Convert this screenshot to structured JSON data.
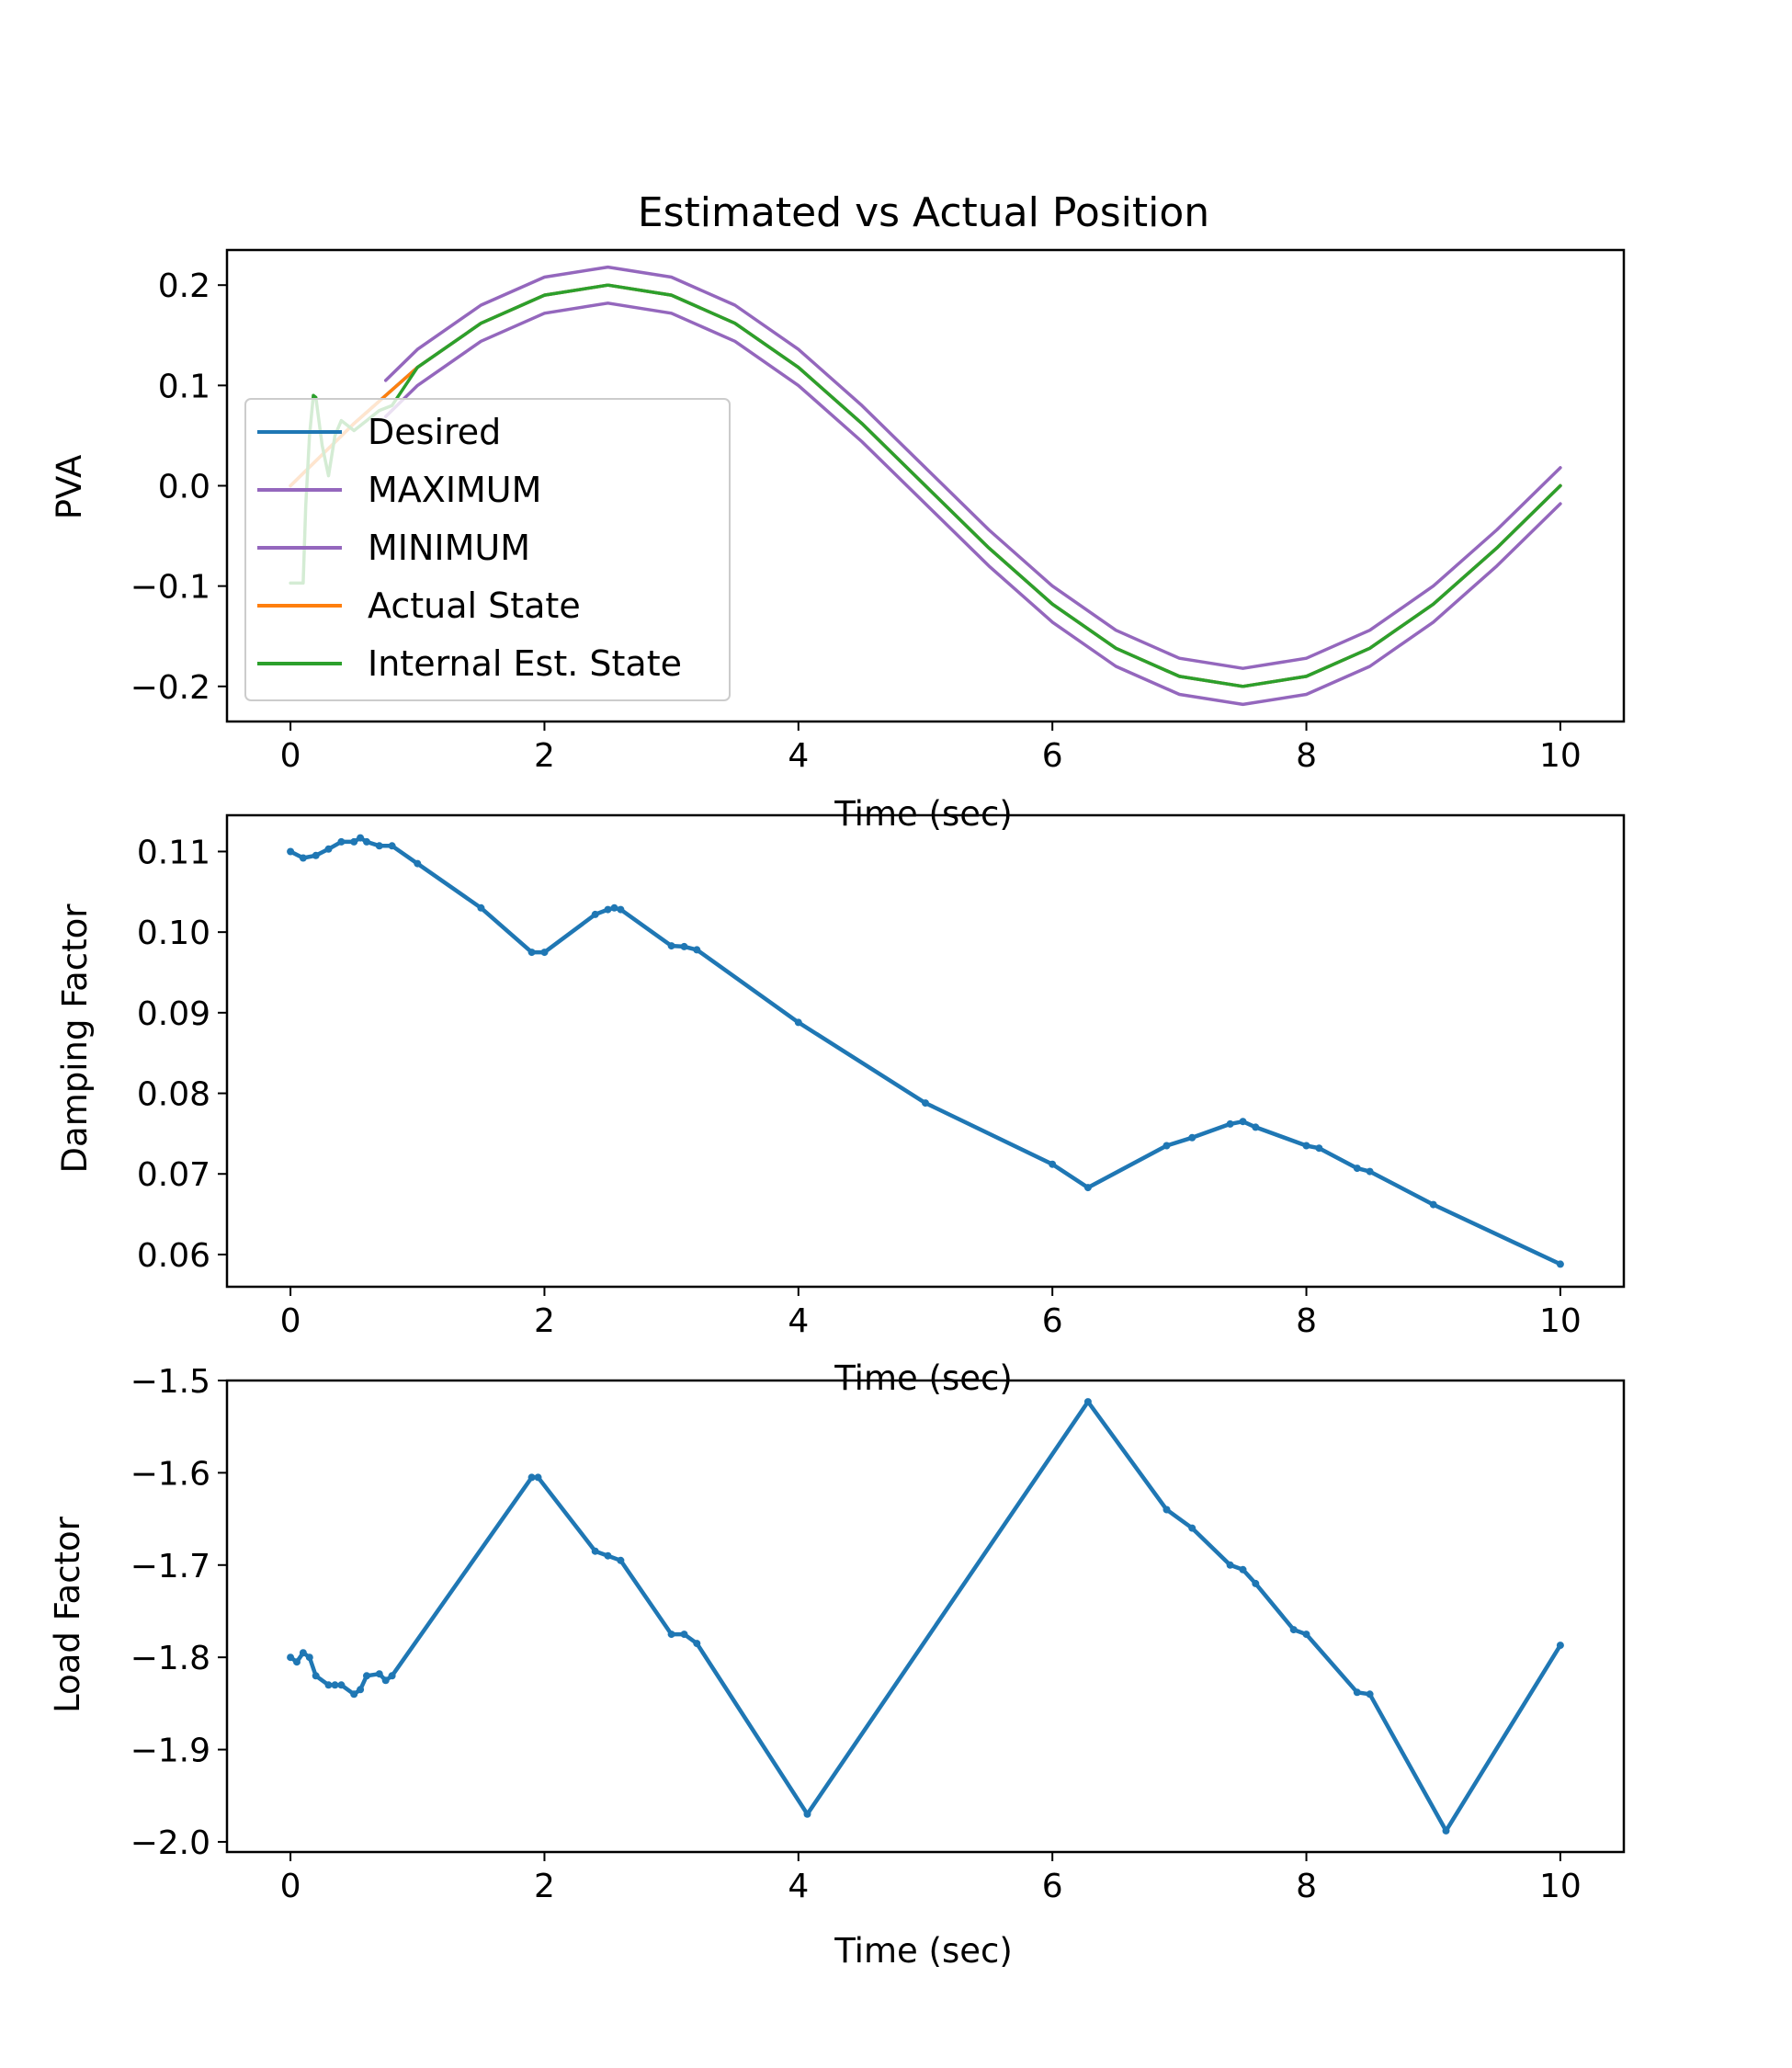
{
  "chart_data": [
    {
      "type": "line",
      "title": "Estimated vs Actual Position",
      "xlabel": "Time (sec)",
      "ylabel": "PVA",
      "xlim": [
        -0.5,
        10.5
      ],
      "ylim": [
        -0.235,
        0.235
      ],
      "xticks": [
        0,
        2,
        4,
        6,
        8,
        10
      ],
      "xtick_labels": [
        "0",
        "2",
        "4",
        "6",
        "8",
        "10"
      ],
      "yticks": [
        0.2,
        0.1,
        0.0,
        -0.1,
        -0.2
      ],
      "ytick_labels": [
        "0.2",
        "0.1",
        "0.0",
        "−0.1",
        "−0.2"
      ],
      "grid": false,
      "legend_position": "upper-left",
      "series": [
        {
          "name": "Desired",
          "color": "#1f77b4",
          "x": [
            0,
            0.5,
            1,
            1.5,
            2,
            2.5,
            3,
            3.5,
            4,
            4.5,
            5,
            5.5,
            6,
            6.5,
            7,
            7.5,
            8,
            8.5,
            9,
            9.5,
            10
          ],
          "y": [
            0.0,
            0.062,
            0.118,
            0.162,
            0.19,
            0.2,
            0.19,
            0.162,
            0.118,
            0.062,
            0.0,
            -0.062,
            -0.118,
            -0.162,
            -0.19,
            -0.2,
            -0.19,
            -0.162,
            -0.118,
            -0.062,
            0.0
          ]
        },
        {
          "name": "MAXIMUM",
          "color": "#9467bd",
          "x": [
            0.75,
            1,
            1.5,
            2,
            2.5,
            3,
            3.5,
            4,
            4.5,
            5,
            5.5,
            6,
            6.5,
            7,
            7.5,
            8,
            8.5,
            9,
            9.5,
            10
          ],
          "y": [
            0.105,
            0.136,
            0.18,
            0.208,
            0.218,
            0.208,
            0.18,
            0.136,
            0.08,
            0.018,
            -0.044,
            -0.1,
            -0.144,
            -0.172,
            -0.182,
            -0.172,
            -0.144,
            -0.1,
            -0.044,
            0.018
          ]
        },
        {
          "name": "MINIMUM",
          "color": "#9467bd",
          "x": [
            0.75,
            1,
            1.5,
            2,
            2.5,
            3,
            3.5,
            4,
            4.5,
            5,
            5.5,
            6,
            6.5,
            7,
            7.5,
            8,
            8.5,
            9,
            9.5,
            10
          ],
          "y": [
            0.069,
            0.1,
            0.144,
            0.172,
            0.182,
            0.172,
            0.144,
            0.1,
            0.044,
            -0.018,
            -0.08,
            -0.136,
            -0.18,
            -0.208,
            -0.218,
            -0.208,
            -0.18,
            -0.136,
            -0.08,
            -0.018
          ]
        },
        {
          "name": "Actual State",
          "color": "#ff7f0e",
          "x": [
            0,
            0.5,
            1,
            1.5,
            2,
            2.5,
            3,
            3.5,
            4,
            4.5,
            5,
            5.5,
            6,
            6.5,
            7,
            7.5,
            8,
            8.5,
            9,
            9.5,
            10
          ],
          "y": [
            0.0,
            0.062,
            0.118,
            0.162,
            0.19,
            0.2,
            0.19,
            0.162,
            0.118,
            0.062,
            0.0,
            -0.062,
            -0.118,
            -0.162,
            -0.19,
            -0.2,
            -0.19,
            -0.162,
            -0.118,
            -0.062,
            0.0
          ]
        },
        {
          "name": "Internal Est. State",
          "color": "#2ca02c",
          "x": [
            0,
            0.1,
            0.12,
            0.15,
            0.18,
            0.2,
            0.25,
            0.3,
            0.35,
            0.4,
            0.45,
            0.5,
            0.6,
            0.7,
            0.8,
            1,
            1.5,
            2,
            2.5,
            3,
            3.5,
            4,
            4.5,
            5,
            5.5,
            6,
            6.5,
            7,
            7.5,
            8,
            8.5,
            9,
            9.5,
            10
          ],
          "y": [
            -0.097,
            -0.097,
            -0.02,
            0.05,
            0.09,
            0.088,
            0.04,
            0.01,
            0.05,
            0.065,
            0.06,
            0.055,
            0.065,
            0.075,
            0.08,
            0.118,
            0.162,
            0.19,
            0.2,
            0.19,
            0.162,
            0.118,
            0.062,
            0.0,
            -0.062,
            -0.118,
            -0.162,
            -0.19,
            -0.2,
            -0.19,
            -0.162,
            -0.118,
            -0.062,
            0.0
          ]
        }
      ]
    },
    {
      "type": "line",
      "xlabel": "Time (sec)",
      "ylabel": "Damping Factor",
      "xlim": [
        -0.5,
        10.5
      ],
      "ylim": [
        0.056,
        0.1145
      ],
      "xticks": [
        0,
        2,
        4,
        6,
        8,
        10
      ],
      "xtick_labels": [
        "0",
        "2",
        "4",
        "6",
        "8",
        "10"
      ],
      "yticks": [
        0.11,
        0.1,
        0.09,
        0.08,
        0.07,
        0.06
      ],
      "ytick_labels": [
        "0.11",
        "0.10",
        "0.09",
        "0.08",
        "0.07",
        "0.06"
      ],
      "grid": false,
      "series": [
        {
          "color": "#1f77b4",
          "x": [
            0,
            0.1,
            0.2,
            0.3,
            0.4,
            0.5,
            0.55,
            0.6,
            0.7,
            0.8,
            1.0,
            1.5,
            1.9,
            2.0,
            2.4,
            2.5,
            2.55,
            2.6,
            3.0,
            3.1,
            3.2,
            4.0,
            5.0,
            6.0,
            6.28,
            6.9,
            7.1,
            7.4,
            7.5,
            7.6,
            8.0,
            8.1,
            8.4,
            8.5,
            9.0,
            10.0
          ],
          "y": [
            0.11,
            0.1092,
            0.1095,
            0.1103,
            0.1112,
            0.1112,
            0.1117,
            0.1112,
            0.1107,
            0.1107,
            0.1085,
            0.103,
            0.0975,
            0.0975,
            0.1022,
            0.1028,
            0.103,
            0.1028,
            0.0983,
            0.0982,
            0.0978,
            0.0888,
            0.0788,
            0.0712,
            0.0683,
            0.0735,
            0.0745,
            0.0762,
            0.0765,
            0.0758,
            0.0735,
            0.0732,
            0.0707,
            0.0703,
            0.0662,
            0.0588
          ]
        }
      ]
    },
    {
      "type": "line",
      "xlabel": "Time (sec)",
      "ylabel": "Load Factor",
      "xlim": [
        -0.5,
        10.5
      ],
      "ylim": [
        -2.011,
        -1.5
      ],
      "xticks": [
        0,
        2,
        4,
        6,
        8,
        10
      ],
      "xtick_labels": [
        "0",
        "2",
        "4",
        "6",
        "8",
        "10"
      ],
      "yticks": [
        -1.5,
        -1.6,
        -1.7,
        -1.8,
        -1.9,
        -2.0
      ],
      "ytick_labels": [
        "−1.5",
        "−1.6",
        "−1.7",
        "−1.8",
        "−1.9",
        "−2.0"
      ],
      "grid": false,
      "series": [
        {
          "color": "#1f77b4",
          "x": [
            0,
            0.05,
            0.1,
            0.15,
            0.2,
            0.3,
            0.35,
            0.4,
            0.5,
            0.55,
            0.6,
            0.7,
            0.75,
            0.8,
            1.9,
            1.95,
            2.4,
            2.5,
            2.6,
            3.0,
            3.1,
            3.2,
            4.07,
            6.28,
            6.9,
            7.1,
            7.4,
            7.5,
            7.6,
            7.9,
            8.0,
            8.4,
            8.5,
            9.1,
            10.0
          ],
          "y": [
            -1.8,
            -1.805,
            -1.795,
            -1.8,
            -1.82,
            -1.83,
            -1.83,
            -1.83,
            -1.84,
            -1.835,
            -1.82,
            -1.818,
            -1.825,
            -1.82,
            -1.605,
            -1.605,
            -1.685,
            -1.69,
            -1.695,
            -1.775,
            -1.775,
            -1.785,
            -1.97,
            -1.523,
            -1.64,
            -1.66,
            -1.7,
            -1.705,
            -1.72,
            -1.77,
            -1.775,
            -1.838,
            -1.84,
            -1.988,
            -1.787
          ]
        }
      ]
    }
  ]
}
